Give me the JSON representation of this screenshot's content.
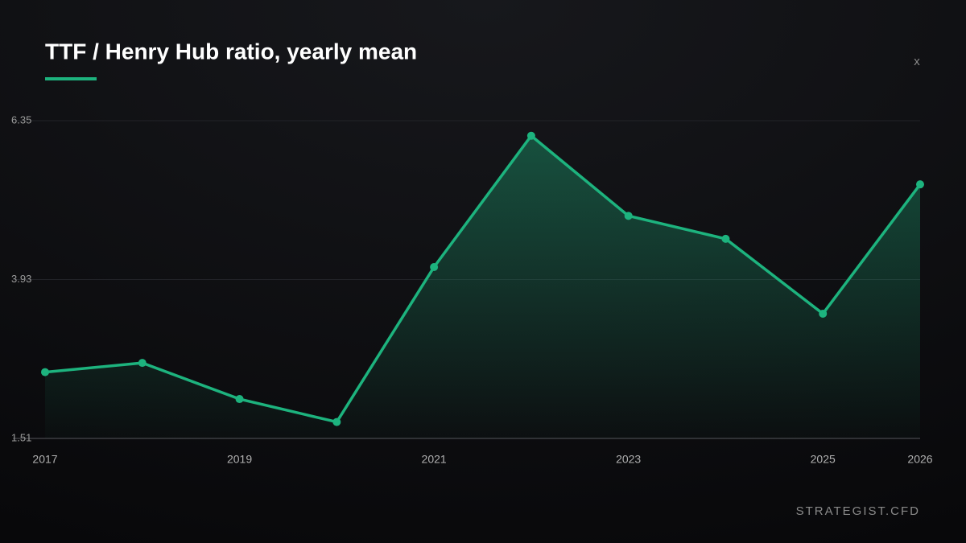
{
  "chart_data": {
    "type": "line",
    "title": "TTF / Henry Hub ratio, yearly mean",
    "x": [
      2017,
      2018,
      2019,
      2020,
      2021,
      2022,
      2023,
      2024,
      2025,
      2026
    ],
    "values": [
      2.52,
      2.66,
      2.11,
      1.76,
      4.12,
      6.12,
      4.9,
      4.55,
      3.41,
      5.38
    ],
    "color": "#1db37e",
    "xlim": [
      2017,
      2026
    ],
    "xticks": [
      2017,
      2019,
      2021,
      2023,
      2025,
      2026
    ],
    "ylim": [
      1.51,
      6.35
    ],
    "yticks": [
      1.51,
      3.93,
      6.35
    ],
    "grid": true
  },
  "close_label": "x",
  "footer": "STRATEGIST.CFD"
}
